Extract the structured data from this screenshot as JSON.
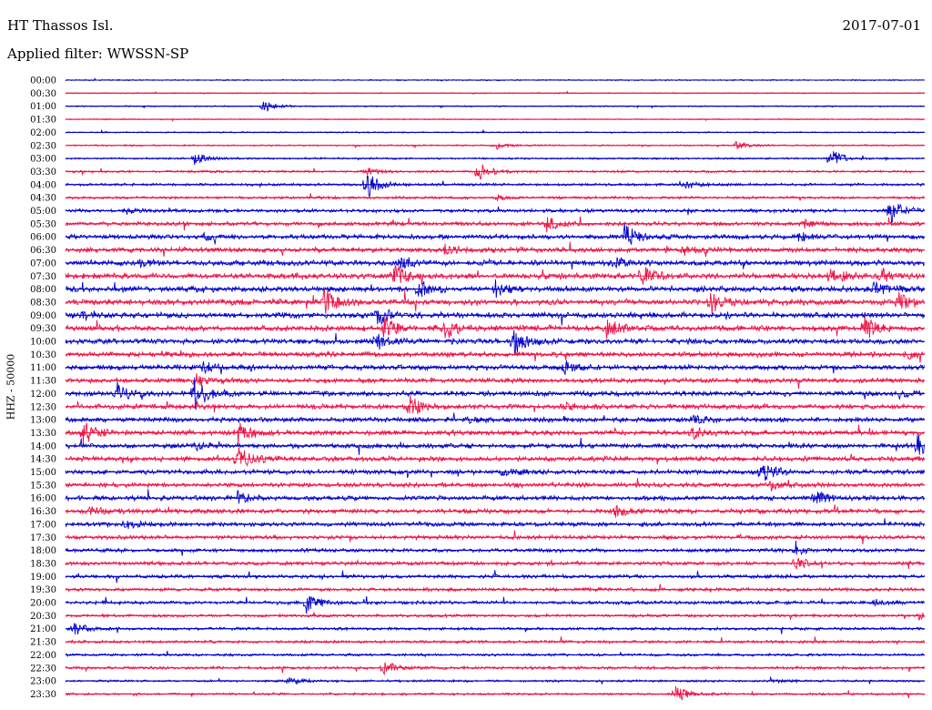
{
  "header": {
    "station": "HT Thassos Isl.",
    "date": "2017-07-01",
    "filter_label": "Applied filter: WWSSN-SP"
  },
  "chart_data": {
    "type": "line",
    "subtype": "helicorder",
    "ylabel": "HHZ - 50000",
    "trace_colors": [
      "#0000cc",
      "#ee1144"
    ],
    "rows": [
      {
        "label": "00:00",
        "noise": 0.8,
        "events": []
      },
      {
        "label": "00:30",
        "noise": 0.7,
        "events": []
      },
      {
        "label": "01:00",
        "noise": 0.8,
        "events": [
          {
            "pos": 0.23,
            "amp": 8
          }
        ]
      },
      {
        "label": "01:30",
        "noise": 0.7,
        "events": []
      },
      {
        "label": "02:00",
        "noise": 0.8,
        "events": []
      },
      {
        "label": "02:30",
        "noise": 1.0,
        "events": [
          {
            "pos": 0.5,
            "amp": 5
          },
          {
            "pos": 0.78,
            "amp": 4
          }
        ]
      },
      {
        "label": "03:00",
        "noise": 1.2,
        "events": [
          {
            "pos": 0.15,
            "amp": 7
          },
          {
            "pos": 0.89,
            "amp": 12
          }
        ]
      },
      {
        "label": "03:30",
        "noise": 1.4,
        "events": [
          {
            "pos": 0.48,
            "amp": 12
          },
          {
            "pos": 0.35,
            "amp": 4
          }
        ]
      },
      {
        "label": "04:00",
        "noise": 1.6,
        "events": [
          {
            "pos": 0.35,
            "amp": 16
          },
          {
            "pos": 0.72,
            "amp": 5
          }
        ]
      },
      {
        "label": "04:30",
        "noise": 1.7,
        "events": [
          {
            "pos": 0.5,
            "amp": 3
          }
        ]
      },
      {
        "label": "05:00",
        "noise": 2.2,
        "events": [
          {
            "pos": 0.96,
            "amp": 14
          },
          {
            "pos": 0.07,
            "amp": 4
          }
        ]
      },
      {
        "label": "05:30",
        "noise": 2.6,
        "events": [
          {
            "pos": 0.56,
            "amp": 8
          },
          {
            "pos": 0.86,
            "amp": 6
          }
        ]
      },
      {
        "label": "06:00",
        "noise": 3.0,
        "events": [
          {
            "pos": 0.65,
            "amp": 16
          },
          {
            "pos": 0.16,
            "amp": 5
          },
          {
            "pos": 0.85,
            "amp": 5
          }
        ]
      },
      {
        "label": "06:30",
        "noise": 3.2,
        "events": [
          {
            "pos": 0.44,
            "amp": 6
          },
          {
            "pos": 0.72,
            "amp": 5
          }
        ]
      },
      {
        "label": "07:00",
        "noise": 3.4,
        "events": [
          {
            "pos": 0.39,
            "amp": 7
          },
          {
            "pos": 0.64,
            "amp": 6
          },
          {
            "pos": 0.09,
            "amp": 5
          }
        ]
      },
      {
        "label": "07:30",
        "noise": 3.6,
        "events": [
          {
            "pos": 0.38,
            "amp": 14
          },
          {
            "pos": 0.67,
            "amp": 13
          },
          {
            "pos": 0.89,
            "amp": 10
          },
          {
            "pos": 0.95,
            "amp": 8
          }
        ]
      },
      {
        "label": "08:00",
        "noise": 3.6,
        "events": [
          {
            "pos": 0.41,
            "amp": 9
          },
          {
            "pos": 0.5,
            "amp": 9
          },
          {
            "pos": 0.94,
            "amp": 9
          }
        ]
      },
      {
        "label": "08:30",
        "noise": 3.8,
        "events": [
          {
            "pos": 0.3,
            "amp": 14
          },
          {
            "pos": 0.75,
            "amp": 12
          },
          {
            "pos": 0.97,
            "amp": 10
          }
        ]
      },
      {
        "label": "09:00",
        "noise": 3.6,
        "events": [
          {
            "pos": 0.36,
            "amp": 12
          },
          {
            "pos": 0.02,
            "amp": 6
          }
        ]
      },
      {
        "label": "09:30",
        "noise": 3.6,
        "events": [
          {
            "pos": 0.37,
            "amp": 14
          },
          {
            "pos": 0.44,
            "amp": 14
          },
          {
            "pos": 0.63,
            "amp": 10
          },
          {
            "pos": 0.93,
            "amp": 12
          }
        ]
      },
      {
        "label": "10:00",
        "noise": 3.4,
        "events": [
          {
            "pos": 0.36,
            "amp": 12
          },
          {
            "pos": 0.52,
            "amp": 16
          }
        ]
      },
      {
        "label": "10:30",
        "noise": 3.2,
        "events": [
          {
            "pos": 0.98,
            "amp": 4
          }
        ]
      },
      {
        "label": "11:00",
        "noise": 3.2,
        "events": [
          {
            "pos": 0.58,
            "amp": 8
          },
          {
            "pos": 0.16,
            "amp": 6
          }
        ]
      },
      {
        "label": "11:30",
        "noise": 3.0,
        "events": [
          {
            "pos": 0.15,
            "amp": 8
          }
        ]
      },
      {
        "label": "12:00",
        "noise": 3.2,
        "events": [
          {
            "pos": 0.06,
            "amp": 12
          },
          {
            "pos": 0.15,
            "amp": 20
          },
          {
            "pos": 0.97,
            "amp": 4
          }
        ]
      },
      {
        "label": "12:30",
        "noise": 3.2,
        "events": [
          {
            "pos": 0.4,
            "amp": 14
          },
          {
            "pos": 0.58,
            "amp": 6
          }
        ]
      },
      {
        "label": "13:00",
        "noise": 3.0,
        "events": [
          {
            "pos": 0.47,
            "amp": 5
          },
          {
            "pos": 0.73,
            "amp": 5
          }
        ]
      },
      {
        "label": "13:30",
        "noise": 3.2,
        "events": [
          {
            "pos": 0.02,
            "amp": 14
          },
          {
            "pos": 0.2,
            "amp": 14
          },
          {
            "pos": 0.73,
            "amp": 6
          }
        ]
      },
      {
        "label": "14:00",
        "noise": 3.0,
        "events": [
          {
            "pos": 0.99,
            "amp": 12
          },
          {
            "pos": 0.15,
            "amp": 5
          }
        ]
      },
      {
        "label": "14:30",
        "noise": 3.2,
        "events": [
          {
            "pos": 0.2,
            "amp": 14
          }
        ]
      },
      {
        "label": "15:00",
        "noise": 3.0,
        "events": [
          {
            "pos": 0.81,
            "amp": 14
          },
          {
            "pos": 0.51,
            "amp": 5
          }
        ]
      },
      {
        "label": "15:30",
        "noise": 3.0,
        "events": [
          {
            "pos": 0.82,
            "amp": 5
          }
        ]
      },
      {
        "label": "16:00",
        "noise": 3.0,
        "events": [
          {
            "pos": 0.87,
            "amp": 9
          },
          {
            "pos": 0.2,
            "amp": 6
          }
        ]
      },
      {
        "label": "16:30",
        "noise": 3.0,
        "events": [
          {
            "pos": 0.64,
            "amp": 7
          },
          {
            "pos": 0.03,
            "amp": 5
          }
        ]
      },
      {
        "label": "17:00",
        "noise": 2.8,
        "events": [
          {
            "pos": 0.07,
            "amp": 6
          }
        ]
      },
      {
        "label": "17:30",
        "noise": 2.6,
        "events": []
      },
      {
        "label": "18:00",
        "noise": 2.4,
        "events": [
          {
            "pos": 0.85,
            "amp": 4
          }
        ]
      },
      {
        "label": "18:30",
        "noise": 2.4,
        "events": [
          {
            "pos": 0.85,
            "amp": 8
          }
        ]
      },
      {
        "label": "19:00",
        "noise": 2.2,
        "events": []
      },
      {
        "label": "19:30",
        "noise": 2.2,
        "events": []
      },
      {
        "label": "20:00",
        "noise": 2.2,
        "events": [
          {
            "pos": 0.28,
            "amp": 12
          },
          {
            "pos": 0.94,
            "amp": 5
          }
        ]
      },
      {
        "label": "20:30",
        "noise": 1.8,
        "events": [
          {
            "pos": 0.99,
            "amp": 5
          }
        ]
      },
      {
        "label": "21:00",
        "noise": 1.8,
        "events": [
          {
            "pos": 0.01,
            "amp": 8
          }
        ]
      },
      {
        "label": "21:30",
        "noise": 1.8,
        "events": []
      },
      {
        "label": "22:00",
        "noise": 1.6,
        "events": []
      },
      {
        "label": "22:30",
        "noise": 1.8,
        "events": [
          {
            "pos": 0.37,
            "amp": 8
          }
        ]
      },
      {
        "label": "23:00",
        "noise": 1.4,
        "events": [
          {
            "pos": 0.26,
            "amp": 5
          },
          {
            "pos": 0.82,
            "amp": 4
          }
        ]
      },
      {
        "label": "23:30",
        "noise": 1.4,
        "events": [
          {
            "pos": 0.71,
            "amp": 10
          }
        ]
      }
    ]
  }
}
